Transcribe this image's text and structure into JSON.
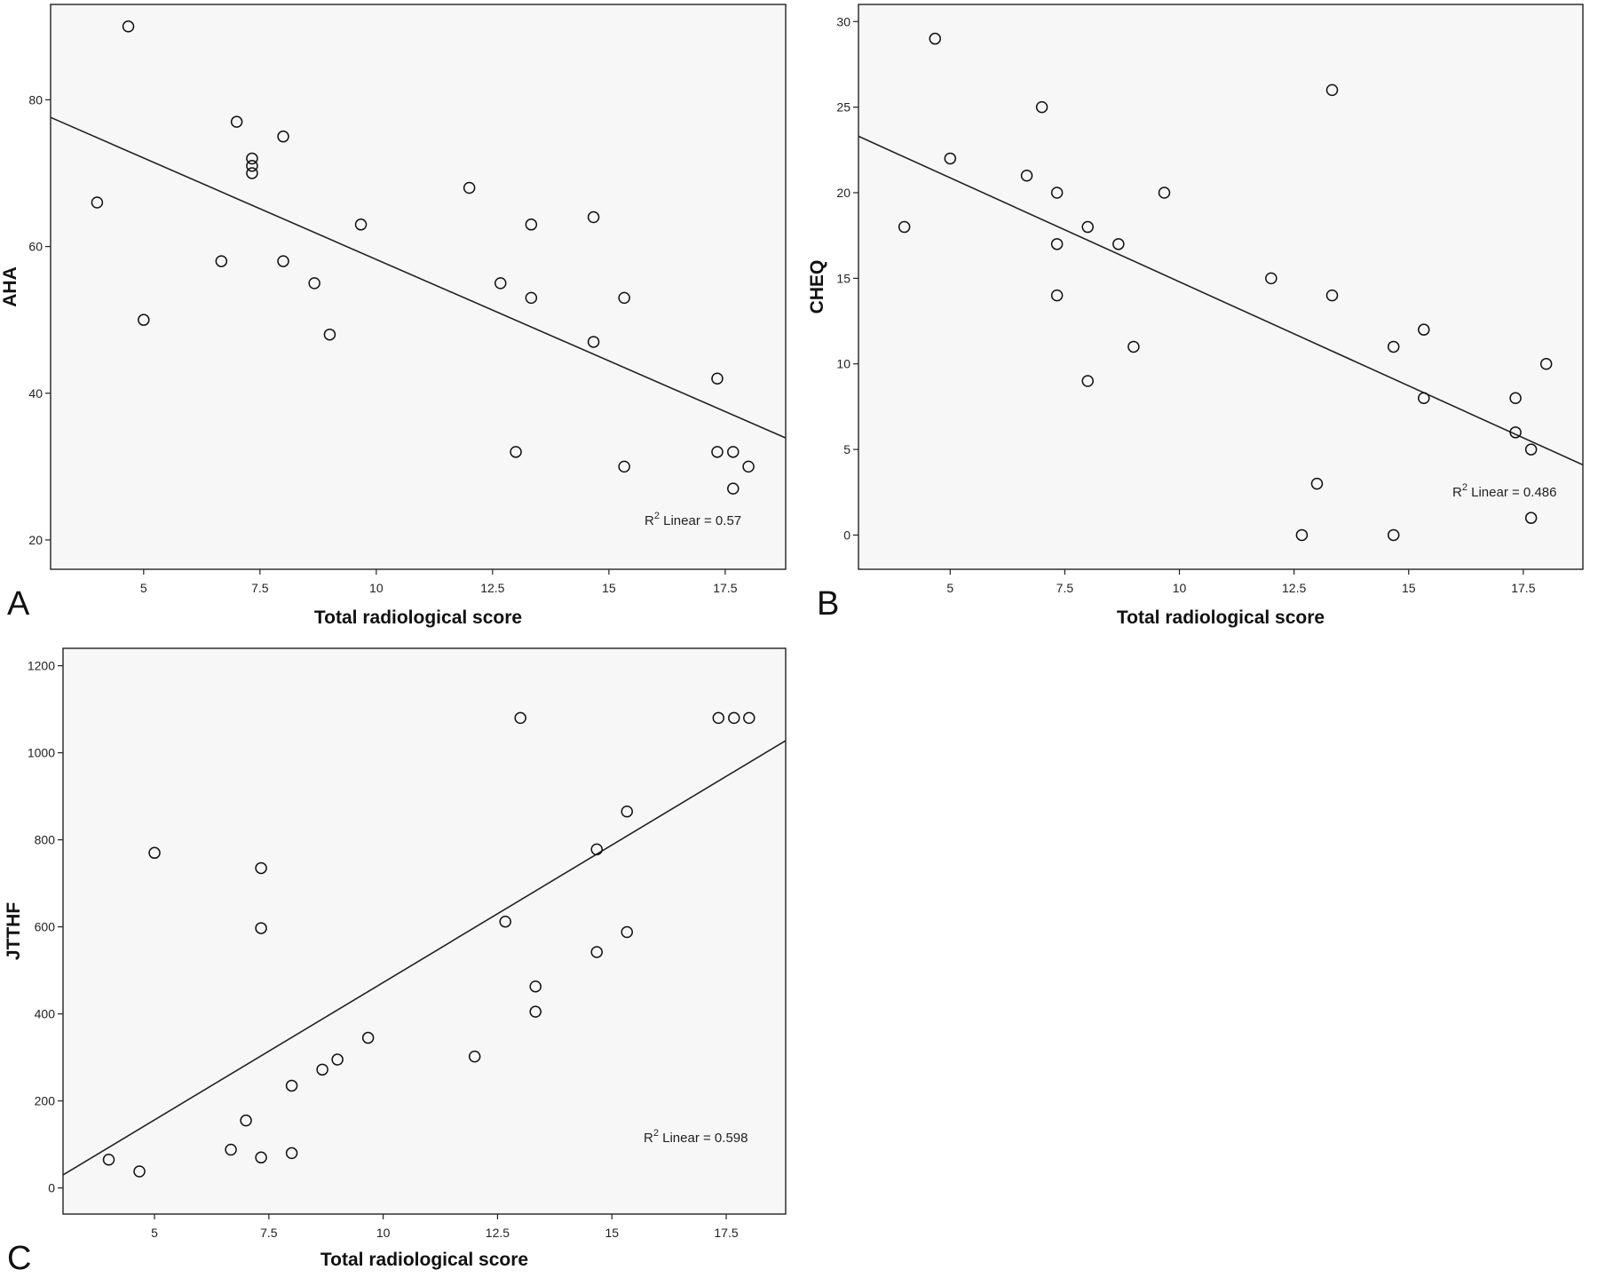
{
  "chart_data": [
    {
      "type": "scatter",
      "panel_label": "A",
      "xlabel": "Total radiological score",
      "ylabel": "AHA",
      "xlim": [
        3,
        18.8
      ],
      "ylim": [
        16,
        93
      ],
      "xticks": [
        5,
        7.5,
        10,
        12.5,
        15,
        17.5
      ],
      "xtick_labels": [
        "5",
        "7.5",
        "10",
        "12.5",
        "15",
        "17.5"
      ],
      "yticks": [
        20,
        40,
        60,
        80
      ],
      "ytick_labels": [
        "20",
        "40",
        "60",
        "80"
      ],
      "points": [
        {
          "x": 4,
          "y": 66
        },
        {
          "x": 4.67,
          "y": 90
        },
        {
          "x": 5,
          "y": 50
        },
        {
          "x": 6.67,
          "y": 58
        },
        {
          "x": 7,
          "y": 77
        },
        {
          "x": 7.33,
          "y": 72
        },
        {
          "x": 7.33,
          "y": 71
        },
        {
          "x": 7.33,
          "y": 70
        },
        {
          "x": 8,
          "y": 75
        },
        {
          "x": 8,
          "y": 58
        },
        {
          "x": 8.67,
          "y": 55
        },
        {
          "x": 9,
          "y": 48
        },
        {
          "x": 9.67,
          "y": 63
        },
        {
          "x": 12,
          "y": 68
        },
        {
          "x": 12.67,
          "y": 55
        },
        {
          "x": 13,
          "y": 32
        },
        {
          "x": 13.33,
          "y": 63
        },
        {
          "x": 13.33,
          "y": 53
        },
        {
          "x": 14.67,
          "y": 64
        },
        {
          "x": 14.67,
          "y": 47
        },
        {
          "x": 15.33,
          "y": 53
        },
        {
          "x": 15.33,
          "y": 30
        },
        {
          "x": 17.33,
          "y": 42
        },
        {
          "x": 17.33,
          "y": 32
        },
        {
          "x": 17.67,
          "y": 32
        },
        {
          "x": 17.67,
          "y": 27
        },
        {
          "x": 18,
          "y": 30
        }
      ],
      "fit_line": {
        "x": [
          3,
          18.8
        ],
        "y": [
          77.6,
          33.9
        ]
      },
      "r2_prefix": "R",
      "r2_sup": "2",
      "r2_text": " Linear = 0.57"
    },
    {
      "type": "scatter",
      "panel_label": "B",
      "xlabel": "Total radiological score",
      "ylabel": "CHEQ",
      "xlim": [
        3,
        18.8
      ],
      "ylim": [
        -2,
        31
      ],
      "xticks": [
        5,
        7.5,
        10,
        12.5,
        15,
        17.5
      ],
      "xtick_labels": [
        "5",
        "7.5",
        "10",
        "12.5",
        "15",
        "17.5"
      ],
      "yticks": [
        0,
        5,
        10,
        15,
        20,
        25,
        30
      ],
      "ytick_labels": [
        "0",
        "5",
        "10",
        "15",
        "20",
        "25",
        "30"
      ],
      "points": [
        {
          "x": 4,
          "y": 18
        },
        {
          "x": 4.67,
          "y": 29
        },
        {
          "x": 5,
          "y": 22
        },
        {
          "x": 6.67,
          "y": 21
        },
        {
          "x": 7,
          "y": 25
        },
        {
          "x": 7.33,
          "y": 20
        },
        {
          "x": 7.33,
          "y": 17
        },
        {
          "x": 7.33,
          "y": 14
        },
        {
          "x": 8,
          "y": 18
        },
        {
          "x": 8,
          "y": 9
        },
        {
          "x": 8.67,
          "y": 17
        },
        {
          "x": 9,
          "y": 11
        },
        {
          "x": 9.67,
          "y": 20
        },
        {
          "x": 12,
          "y": 15
        },
        {
          "x": 12.67,
          "y": 0
        },
        {
          "x": 13,
          "y": 3
        },
        {
          "x": 13.33,
          "y": 26
        },
        {
          "x": 13.33,
          "y": 14
        },
        {
          "x": 14.67,
          "y": 11
        },
        {
          "x": 14.67,
          "y": 0
        },
        {
          "x": 15.33,
          "y": 12
        },
        {
          "x": 15.33,
          "y": 8
        },
        {
          "x": 17.33,
          "y": 8
        },
        {
          "x": 17.33,
          "y": 6
        },
        {
          "x": 17.67,
          "y": 5
        },
        {
          "x": 17.67,
          "y": 1
        },
        {
          "x": 18,
          "y": 10
        }
      ],
      "fit_line": {
        "x": [
          3,
          18.8
        ],
        "y": [
          23.3,
          4.1
        ]
      },
      "r2_prefix": "R",
      "r2_sup": "2",
      "r2_text": " Linear = 0.486"
    },
    {
      "type": "scatter",
      "panel_label": "C",
      "xlabel": "Total radiological score",
      "ylabel": "JTTHF",
      "xlim": [
        3,
        18.8
      ],
      "ylim": [
        -60,
        1240
      ],
      "xticks": [
        5,
        7.5,
        10,
        12.5,
        15,
        17.5
      ],
      "xtick_labels": [
        "5",
        "7.5",
        "10",
        "12.5",
        "15",
        "17.5"
      ],
      "yticks": [
        0,
        200,
        400,
        600,
        800,
        1000,
        1200
      ],
      "ytick_labels": [
        "0",
        "200",
        "400",
        "600",
        "800",
        "1000",
        "1200"
      ],
      "points": [
        {
          "x": 4,
          "y": 65
        },
        {
          "x": 4.67,
          "y": 38
        },
        {
          "x": 5,
          "y": 770
        },
        {
          "x": 6.67,
          "y": 88
        },
        {
          "x": 7,
          "y": 155
        },
        {
          "x": 7.33,
          "y": 735
        },
        {
          "x": 7.33,
          "y": 597
        },
        {
          "x": 7.33,
          "y": 70
        },
        {
          "x": 8,
          "y": 235
        },
        {
          "x": 8,
          "y": 80
        },
        {
          "x": 8.67,
          "y": 272
        },
        {
          "x": 9,
          "y": 295
        },
        {
          "x": 9.67,
          "y": 345
        },
        {
          "x": 12,
          "y": 302
        },
        {
          "x": 12.67,
          "y": 612
        },
        {
          "x": 13,
          "y": 1080
        },
        {
          "x": 13.33,
          "y": 463
        },
        {
          "x": 13.33,
          "y": 405
        },
        {
          "x": 14.67,
          "y": 778
        },
        {
          "x": 14.67,
          "y": 542
        },
        {
          "x": 15.33,
          "y": 865
        },
        {
          "x": 15.33,
          "y": 588
        },
        {
          "x": 17.33,
          "y": 1080
        },
        {
          "x": 17.67,
          "y": 1080
        },
        {
          "x": 18,
          "y": 1080
        }
      ],
      "fit_line": {
        "x": [
          3,
          18.8
        ],
        "y": [
          30,
          1028
        ]
      },
      "r2_prefix": "R",
      "r2_sup": "2",
      "r2_text": " Linear = 0.598"
    }
  ]
}
